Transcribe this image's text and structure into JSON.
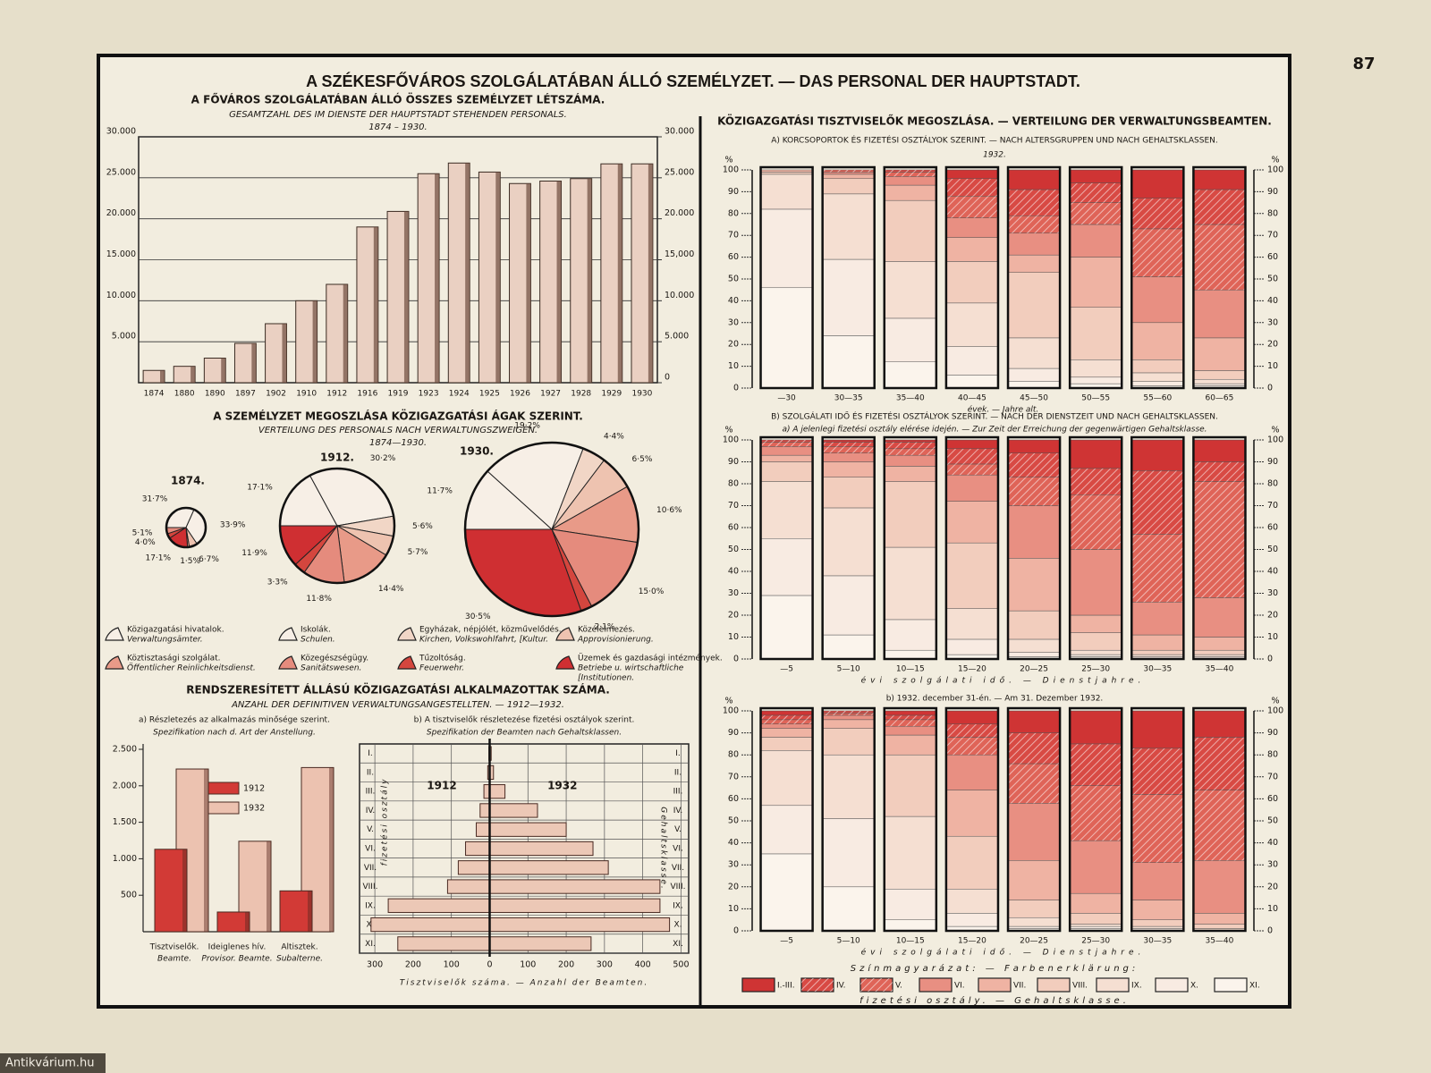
{
  "page_number": "87",
  "title": "A SZÉKESFŐVÁROS SZOLGÁLATÁBAN ÁLLÓ SZEMÉLYZET. — DAS PERSONAL DER HAUPTSTADT.",
  "watermark": "Antikvárium.hu",
  "pie_section": {
    "title": "A SZEMÉLYZET MEGOSZLÁSA KÖZIGAZGATÁSI ÁGAK SZERINT.",
    "subtitle": "VERTEILUNG DES PERSONALS NACH VERWALTUNGSZWEIGEN.",
    "period": "1874—1930.",
    "legend": [
      {
        "lines": [
          "Közigazgatási hivatalok.",
          "Verwaltungsämter."
        ],
        "color": "#f7efe6"
      },
      {
        "lines": [
          "Iskolák.",
          "Schulen."
        ],
        "color": "#f7efe6"
      },
      {
        "lines": [
          "Egyházak, népjólét, közművelődés.",
          "Kirchen, Volkswohlfahrt, [Kultur."
        ],
        "color": "#f1d6c6"
      },
      {
        "lines": [
          "Közélelmezés.",
          "Approvisionierung."
        ],
        "color": "#eec3b0"
      },
      {
        "lines": [
          "Köztisztasági szolgálat.",
          "Öffentlicher Reinlichkeitsdienst."
        ],
        "color": "#e89a88"
      },
      {
        "lines": [
          "Közegészségügy.",
          "Sanitätswesen."
        ],
        "color": "#e58b7d"
      },
      {
        "lines": [
          "Tűzoltóság.",
          "Feuerwehr."
        ],
        "color": "#d4463e"
      },
      {
        "lines": [
          "Üzemek és gazdasági intézmények.",
          "Betriebe u. wirtschaftliche",
          "[Institutionen."
        ],
        "color": "#cf2f32"
      }
    ]
  },
  "employees_section": {
    "title": "RENDSZERESÍTETT ÁLLÁSÚ KÖZIGAZGATÁSI ALKALMAZOTTAK SZÁMA.",
    "subtitle": "ANZAHL DER DEFINITIVEN VERWALTUNGSANGESTELLTEN. — 1912—1932."
  },
  "officials_section": {
    "title": "KÖZIGAZGATÁSI TISZTVISELŐK MEGOSZLÁSA. — VERTEILUNG DER VERWALTUNGSBEAMTEN.",
    "part_b_title": "B) SZOLGÁLATI IDŐ ÉS FIZETÉSI OSZTÁLYOK SZERINT. — NACH DER DIENSTZEIT UND NACH GEHALTSKLASSEN.",
    "legend_title": "Színmagyarázat: — Farbenerklärung:",
    "legend_caption": "fizetési osztály. — Gehaltsklasse."
  },
  "chart_data": [
    {
      "type": "bar",
      "title": "A FŐVÁROS SZOLGÁLATÁBAN ÁLLÓ ÖSSZES SZEMÉLYZET LÉTSZÁMA.",
      "subtitle": "GESAMTZAHL DES IM DIENSTE DER HAUPTSTADT STEHENDEN PERSONALS.",
      "period": "1874 – 1930.",
      "categories": [
        "1874",
        "1880",
        "1890",
        "1897",
        "1902",
        "1910",
        "1912",
        "1916",
        "1919",
        "1923",
        "1924",
        "1925",
        "1926",
        "1927",
        "1928",
        "1929",
        "1930"
      ],
      "values": [
        1500,
        2000,
        3000,
        4800,
        7200,
        10000,
        12000,
        19000,
        20900,
        25500,
        26800,
        25700,
        24300,
        24600,
        24900,
        26700,
        26700
      ],
      "color": "#ead0c2",
      "ylim": [
        0,
        30000
      ],
      "yticks": [
        {
          "value": 5000,
          "label": "5.000"
        },
        {
          "value": 10000,
          "label": "10.000"
        },
        {
          "value": 15000,
          "label": "15.000"
        },
        {
          "value": 20000,
          "label": "20.000"
        },
        {
          "value": 25000,
          "label": "25.000"
        },
        {
          "value": 30000,
          "label": "30.000"
        }
      ],
      "y2lim": [
        0,
        30000
      ],
      "y2ticks": [
        0,
        {
          "value": 5000,
          "label": "5.000"
        },
        {
          "value": 10000,
          "label": "10.000"
        },
        {
          "value": 15000,
          "label": "15,000"
        },
        {
          "value": 20000,
          "label": "20.000"
        },
        {
          "value": 25000,
          "label": "25.000"
        },
        {
          "value": 30000,
          "label": "30.000"
        }
      ],
      "grid": true
    },
    {
      "type": "pie",
      "title": "1874.",
      "values": [
        31.7,
        33.9,
        6.7,
        1.5,
        17.1,
        4.0,
        5.1
      ],
      "value_labels": [
        "31·7%",
        "33·9%",
        "6·7%",
        "1·5%",
        "17·1%",
        "4·0%",
        "5·1%"
      ],
      "colors": [
        "#f7efe6",
        "#f7efe6",
        "#eec3b0",
        "#e89a88",
        "#cf2f32",
        "#d4463e",
        "#e58b7d"
      ]
    },
    {
      "type": "pie",
      "title": "1912.",
      "values": [
        17.1,
        30.2,
        5.6,
        5.7,
        14.4,
        11.8,
        3.3,
        11.9
      ],
      "value_labels": [
        "17·1%",
        "30·2%",
        "5·6%",
        "5·7%",
        "14·4%",
        "11·8%",
        "3·3%",
        "11·9%"
      ],
      "colors": [
        "#f7efe6",
        "#f7efe6",
        "#f1d6c6",
        "#eec3b0",
        "#e89a88",
        "#e58b7d",
        "#d4463e",
        "#cf2f32"
      ]
    },
    {
      "type": "pie",
      "title": "1930.",
      "values": [
        11.7,
        19.2,
        4.4,
        6.5,
        10.6,
        15.0,
        2.1,
        30.5
      ],
      "value_labels": [
        "11·7%",
        "19·2%",
        "4·4%",
        "6·5%",
        "10·6%",
        "15·0%",
        "2·1%",
        "30·5%"
      ],
      "colors": [
        "#f7efe6",
        "#f7efe6",
        "#f1d6c6",
        "#eec3b0",
        "#e89a88",
        "#e58b7d",
        "#d4463e",
        "#cf2f32"
      ]
    },
    {
      "type": "bar",
      "title": "a) Részletezés az alkalmazás minősége szerint.",
      "subtitle": "Spezifikation nach d. Art der Anstellung.",
      "categories": [
        "Tisztviselők.",
        "Ideiglenes hív.",
        "Altisztek."
      ],
      "categories_de": [
        "Beamte.",
        "Provisor. Beamte.",
        "Subalterne."
      ],
      "series": [
        {
          "name": "1912",
          "color": "#d23a36",
          "values": [
            1130,
            270,
            560
          ]
        },
        {
          "name": "1932",
          "color": "#ecc2b0",
          "values": [
            2230,
            1240,
            2250
          ]
        }
      ],
      "ylim": [
        0,
        2500
      ],
      "yticks": [
        500,
        {
          "value": 1000,
          "label": "1.000"
        },
        {
          "value": 1500,
          "label": "1.500"
        },
        {
          "value": 2000,
          "label": "2.000"
        },
        {
          "value": 2500,
          "label": "2.500"
        }
      ]
    },
    {
      "type": "pyramid",
      "title": "b) A tisztviselők részletezése fizetési osztályok szerint.",
      "subtitle": "Spezifikation der Beamten nach Gehaltsklassen.",
      "categories": [
        "I.",
        "II.",
        "III.",
        "IV.",
        "V.",
        "VI.",
        "VII.",
        "VIII.",
        "IX.",
        "X.",
        "XI."
      ],
      "series": [
        {
          "name": "1912",
          "color": "#ecc8b6",
          "values": [
            2,
            5,
            15,
            25,
            35,
            63,
            82,
            110,
            265,
            310,
            240
          ]
        },
        {
          "name": "1932",
          "color": "#ecc8b6",
          "values": [
            4,
            10,
            40,
            125,
            200,
            270,
            310,
            445,
            445,
            470,
            265
          ]
        }
      ],
      "xlim": [
        -340,
        520
      ],
      "xticks": [
        {
          "value": -300,
          "label": "300"
        },
        {
          "value": -200,
          "label": "200"
        },
        {
          "value": -100,
          "label": "100"
        },
        0,
        100,
        200,
        300,
        400,
        500
      ],
      "x_label": "Tisztviselők száma. — Anzahl der Beamten.",
      "y_label": "fizetési osztály",
      "y2_label": "Gehaltsklasse.",
      "grid": true
    },
    {
      "type": "stacked_bar",
      "title": "A) KORCSOPORTOK ÉS FIZETÉSI OSZTÁLYOK SZERINT. — NACH ALTERSGRUPPEN UND NACH GEHALTSKLASSEN.",
      "subtitle": "1932.",
      "unit": "%",
      "categories": [
        "—30",
        "30—35",
        "35—40",
        "40—45",
        "45—50",
        "50—55",
        "55—60",
        "60—65"
      ],
      "x_label": "évek. — Jahre alt.",
      "ylim": [
        0,
        100
      ],
      "yticks": [
        0,
        10,
        20,
        30,
        40,
        50,
        60,
        70,
        80,
        90,
        100
      ],
      "series": [
        {
          "name": "I.-III.",
          "color": "#cf3434",
          "values": [
            0,
            0,
            0,
            4,
            9,
            6,
            13,
            9
          ]
        },
        {
          "name": "IV.",
          "color": "#d84a44",
          "hatch": true,
          "values": [
            0,
            0,
            1,
            8,
            12,
            9,
            14,
            16
          ]
        },
        {
          "name": "V.",
          "color": "#df6458",
          "hatch": true,
          "values": [
            0,
            1,
            2,
            10,
            8,
            10,
            22,
            30
          ]
        },
        {
          "name": "VI.",
          "color": "#e88f82",
          "values": [
            0,
            1,
            4,
            9,
            10,
            15,
            21,
            22
          ]
        },
        {
          "name": "VII.",
          "color": "#efb3a3",
          "values": [
            1,
            2,
            7,
            11,
            8,
            23,
            17,
            15
          ]
        },
        {
          "name": "VIII.",
          "color": "#f2cdbd",
          "values": [
            1,
            7,
            28,
            19,
            30,
            24,
            6,
            4
          ]
        },
        {
          "name": "IX.",
          "color": "#f5dfd2",
          "values": [
            16,
            30,
            26,
            20,
            14,
            8,
            4,
            2
          ]
        },
        {
          "name": "X.",
          "color": "#f8ebe2",
          "values": [
            36,
            35,
            20,
            13,
            6,
            3,
            2,
            1
          ]
        },
        {
          "name": "XI.",
          "color": "#fbf4ec",
          "values": [
            46,
            24,
            12,
            6,
            3,
            2,
            1,
            1
          ]
        }
      ]
    },
    {
      "type": "stacked_bar",
      "title": "a) A jelenlegi fizetési osztály elérése idején. — Zur Zeit der Erreichung der gegenwärtigen Gehaltsklasse.",
      "unit": "%",
      "categories": [
        "—5",
        "5—10",
        "10—15",
        "15—20",
        "20—25",
        "25—30",
        "30—35",
        "35—40"
      ],
      "x_label": "évi szolgálati idő. — Dienstjahre.",
      "ylim": [
        0,
        100
      ],
      "yticks": [
        0,
        10,
        20,
        30,
        40,
        50,
        60,
        70,
        80,
        90,
        100
      ],
      "series": [
        {
          "name": "I.-III.",
          "color": "#cf3434",
          "values": [
            0,
            1,
            1,
            4,
            6,
            13,
            14,
            10
          ]
        },
        {
          "name": "IV.",
          "color": "#d84a44",
          "hatch": true,
          "values": [
            1,
            2,
            3,
            7,
            11,
            12,
            29,
            9
          ]
        },
        {
          "name": "V.",
          "color": "#df6458",
          "hatch": true,
          "values": [
            2,
            3,
            3,
            5,
            13,
            25,
            31,
            53
          ]
        },
        {
          "name": "VI.",
          "color": "#e88f82",
          "values": [
            4,
            4,
            5,
            12,
            24,
            30,
            15,
            18
          ]
        },
        {
          "name": "VII.",
          "color": "#efb3a3",
          "values": [
            3,
            7,
            7,
            19,
            24,
            8,
            7,
            6
          ]
        },
        {
          "name": "VIII.",
          "color": "#f2cdbd",
          "values": [
            9,
            14,
            30,
            30,
            13,
            8,
            2,
            2
          ]
        },
        {
          "name": "IX.",
          "color": "#f5dfd2",
          "values": [
            26,
            31,
            33,
            14,
            6,
            2,
            1,
            1
          ]
        },
        {
          "name": "X.",
          "color": "#f8ebe2",
          "values": [
            26,
            27,
            14,
            7,
            2,
            1,
            1,
            1
          ]
        },
        {
          "name": "XI.",
          "color": "#fbf4ec",
          "values": [
            29,
            11,
            4,
            2,
            1,
            1,
            0,
            0
          ]
        }
      ]
    },
    {
      "type": "stacked_bar",
      "title": "b) 1932. december 31-én. — Am 31. Dezember 1932.",
      "unit": "%",
      "categories": [
        "—5",
        "5—10",
        "10—15",
        "15—20",
        "20—25",
        "25—30",
        "30—35",
        "35—40"
      ],
      "x_label": "évi szolgálati idő. — Dienstjahre.",
      "ylim": [
        0,
        100
      ],
      "yticks": [
        0,
        10,
        20,
        30,
        40,
        50,
        60,
        70,
        80,
        90,
        100
      ],
      "series": [
        {
          "name": "I.-III.",
          "color": "#cf3434",
          "values": [
            2,
            0,
            2,
            6,
            10,
            15,
            17,
            12
          ]
        },
        {
          "name": "IV.",
          "color": "#d84a44",
          "hatch": true,
          "values": [
            2,
            1,
            2,
            6,
            14,
            19,
            21,
            24
          ]
        },
        {
          "name": "V.",
          "color": "#df6458",
          "hatch": true,
          "values": [
            2,
            1,
            3,
            8,
            18,
            25,
            31,
            32
          ]
        },
        {
          "name": "VI.",
          "color": "#e88f82",
          "values": [
            2,
            2,
            4,
            16,
            26,
            24,
            17,
            24
          ]
        },
        {
          "name": "VII.",
          "color": "#efb3a3",
          "values": [
            4,
            4,
            9,
            21,
            18,
            9,
            9,
            5
          ]
        },
        {
          "name": "VIII.",
          "color": "#f2cdbd",
          "values": [
            6,
            12,
            28,
            24,
            8,
            5,
            3,
            2
          ]
        },
        {
          "name": "IX.",
          "color": "#f5dfd2",
          "values": [
            25,
            29,
            33,
            11,
            4,
            1,
            1,
            1
          ]
        },
        {
          "name": "X.",
          "color": "#f8ebe2",
          "values": [
            22,
            31,
            14,
            6,
            1,
            1,
            1,
            0
          ]
        },
        {
          "name": "XI.",
          "color": "#fbf4ec",
          "values": [
            35,
            20,
            5,
            2,
            1,
            1,
            0,
            0
          ]
        }
      ]
    }
  ]
}
